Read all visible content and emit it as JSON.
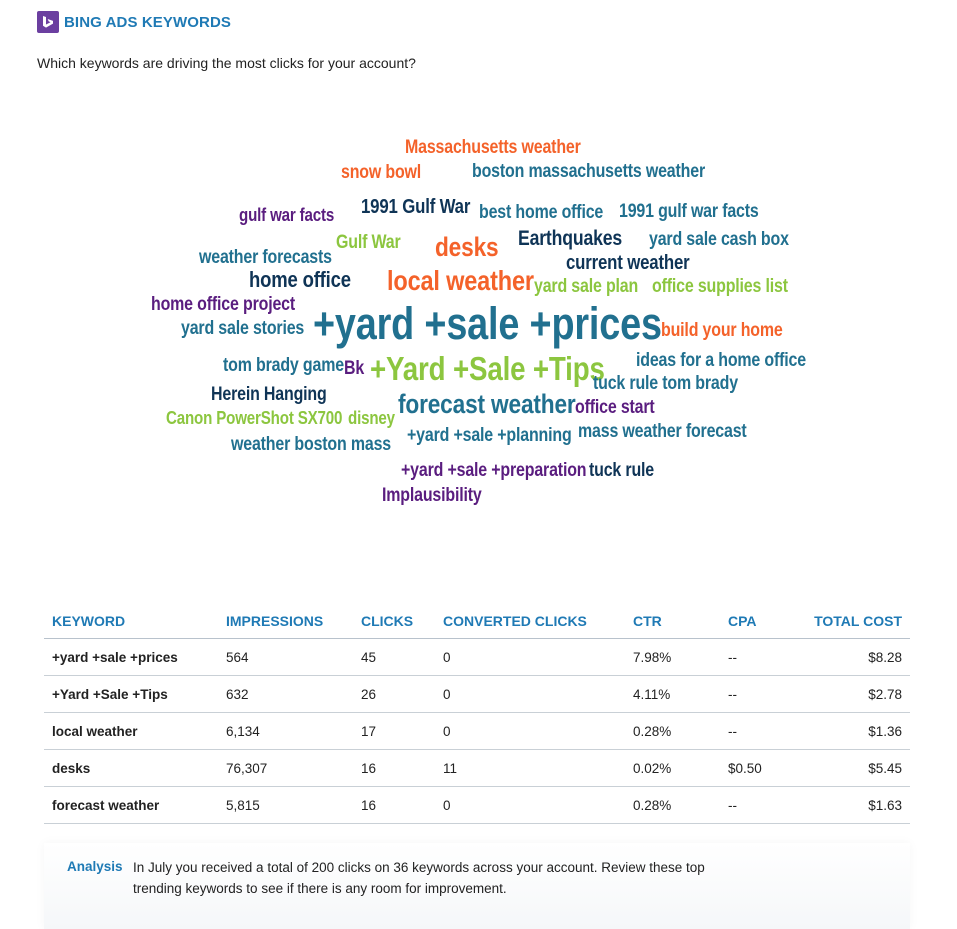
{
  "header": {
    "title": "BING ADS KEYWORDS"
  },
  "question": "Which keywords are driving the most clicks for your account?",
  "colors": {
    "orange": "#f4622a",
    "teal": "#21708f",
    "navy": "#0f3456",
    "green": "#8cc63f",
    "purple": "#5a1d7f",
    "accent": "#1f7ab5"
  },
  "cloud": {
    "words": [
      {
        "text": "Massachusetts weather"
      },
      {
        "text": "snow bowl"
      },
      {
        "text": "boston massachusetts weather"
      },
      {
        "text": "gulf war facts"
      },
      {
        "text": "1991 Gulf War"
      },
      {
        "text": "best home office"
      },
      {
        "text": "1991 gulf war facts"
      },
      {
        "text": "weather forecasts"
      },
      {
        "text": "Gulf War"
      },
      {
        "text": "desks"
      },
      {
        "text": "Earthquakes"
      },
      {
        "text": "yard sale cash box"
      },
      {
        "text": "home office"
      },
      {
        "text": "current weather"
      },
      {
        "text": "local weather"
      },
      {
        "text": "yard sale plan"
      },
      {
        "text": "office supplies list"
      },
      {
        "text": "home office project"
      },
      {
        "text": "yard sale stories"
      },
      {
        "text": "+yard +sale +prices"
      },
      {
        "text": "build your home"
      },
      {
        "text": "tom brady game"
      },
      {
        "text": "Bk"
      },
      {
        "text": "+Yard +Sale +Tips"
      },
      {
        "text": "ideas for a home office"
      },
      {
        "text": "tuck rule tom brady"
      },
      {
        "text": "Herein Hanging"
      },
      {
        "text": "Canon PowerShot SX700"
      },
      {
        "text": "disney"
      },
      {
        "text": "forecast weather"
      },
      {
        "text": "office start"
      },
      {
        "text": "weather boston mass"
      },
      {
        "text": "+yard +sale +planning"
      },
      {
        "text": "mass weather forecast"
      },
      {
        "text": "+yard +sale +preparation"
      },
      {
        "text": "tuck rule"
      },
      {
        "text": "Implausibility"
      }
    ]
  },
  "table": {
    "headers": [
      "KEYWORD",
      "IMPRESSIONS",
      "CLICKS",
      "CONVERTED CLICKS",
      "CTR",
      "CPA",
      "TOTAL COST"
    ],
    "rows": [
      [
        "+yard +sale +prices",
        "564",
        "45",
        "0",
        "7.98%",
        "--",
        "$8.28"
      ],
      [
        "+Yard +Sale +Tips",
        "632",
        "26",
        "0",
        "4.11%",
        "--",
        "$2.78"
      ],
      [
        "local weather",
        "6,134",
        "17",
        "0",
        "0.28%",
        "--",
        "$1.36"
      ],
      [
        "desks",
        "76,307",
        "16",
        "11",
        "0.02%",
        "$0.50",
        "$5.45"
      ],
      [
        "forecast weather",
        "5,815",
        "16",
        "0",
        "0.28%",
        "--",
        "$1.63"
      ]
    ]
  },
  "analysis": {
    "label": "Analysis",
    "text": "In July you received a total of 200 clicks on 36 keywords across your account. Review these top trending keywords to see if there is any room for improvement."
  }
}
